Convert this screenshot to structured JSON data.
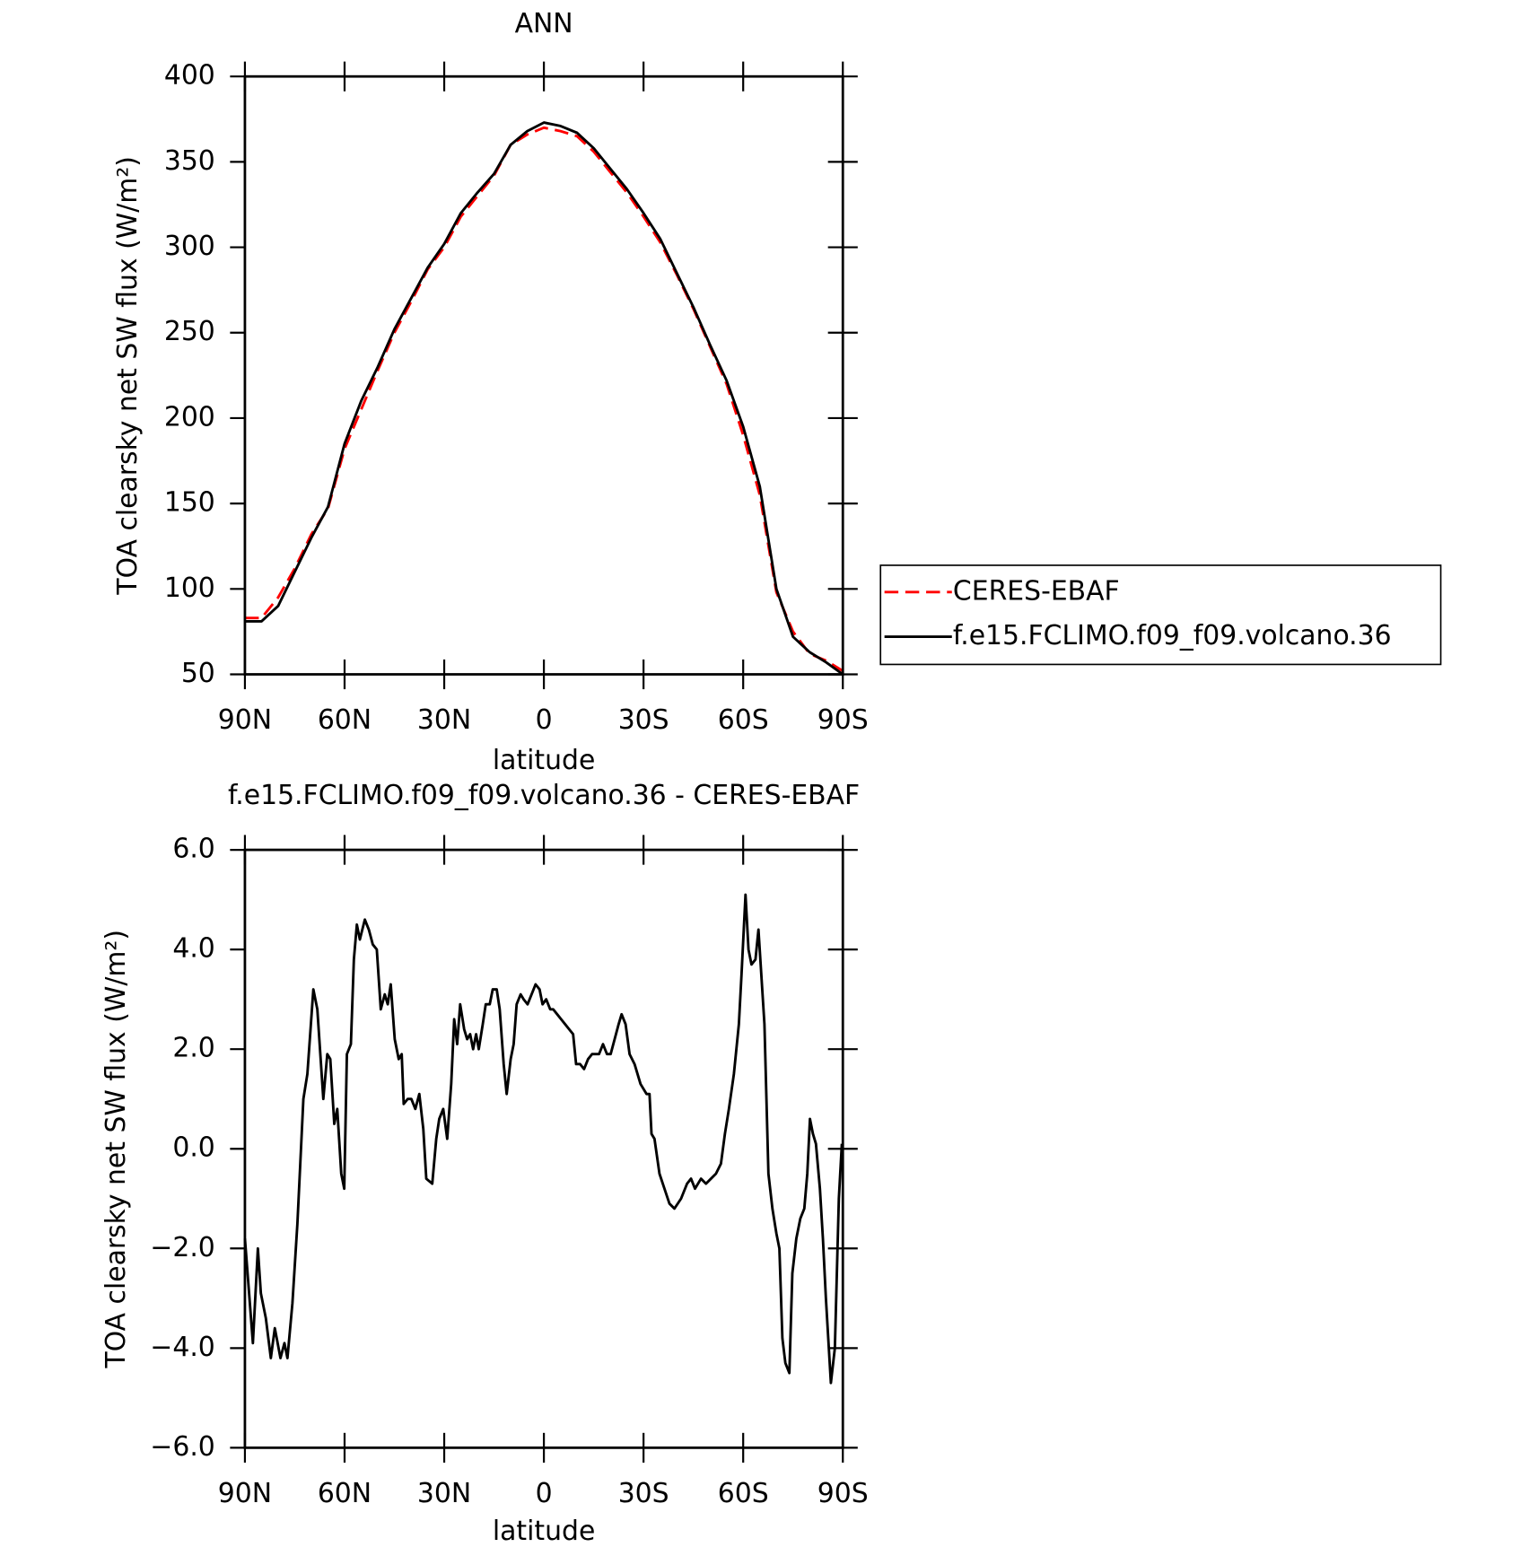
{
  "chart_data": [
    {
      "type": "line",
      "title": "ANN",
      "xlabel": "latitude",
      "ylabel": "TOA clearsky net SW flux (W/m²)",
      "x": [
        90,
        85,
        80,
        75,
        70,
        65,
        60,
        55,
        50,
        45,
        40,
        35,
        30,
        25,
        20,
        15,
        10,
        5,
        0,
        -5,
        -10,
        -15,
        -20,
        -25,
        -30,
        -35,
        -40,
        -45,
        -50,
        -55,
        -60,
        -65,
        -70,
        -75,
        -80,
        -85,
        -90
      ],
      "series": [
        {
          "name": "CERES-EBAF",
          "color": "#ff0000",
          "dashed": true,
          "values": [
            83,
            83,
            95,
            112,
            132,
            147,
            182,
            205,
            228,
            250,
            268,
            287,
            300,
            318,
            330,
            342,
            360,
            366,
            370,
            368,
            365,
            356,
            344,
            332,
            318,
            303,
            284,
            264,
            242,
            220,
            190,
            155,
            98,
            75,
            62,
            58,
            52
          ]
        },
        {
          "name": "f.e15.FCLIMO.f09_f09.volcano.36",
          "color": "#000000",
          "dashed": false,
          "values": [
            81,
            81,
            90,
            110,
            130,
            148,
            185,
            210,
            230,
            252,
            270,
            288,
            302,
            320,
            332,
            343,
            360,
            368,
            373,
            371,
            367,
            358,
            346,
            334,
            320,
            305,
            285,
            265,
            243,
            222,
            195,
            160,
            100,
            72,
            63,
            57,
            50
          ]
        }
      ],
      "xlim": [
        90,
        -90
      ],
      "xticks": [
        {
          "value": 90,
          "label": "90N"
        },
        {
          "value": 60,
          "label": "60N"
        },
        {
          "value": 30,
          "label": "30N"
        },
        0,
        {
          "value": -30,
          "label": "30S"
        },
        {
          "value": -60,
          "label": "60S"
        },
        {
          "value": -90,
          "label": "90S"
        }
      ],
      "ylim": [
        50,
        400
      ],
      "yticks": [
        50,
        100,
        150,
        200,
        250,
        300,
        350,
        400
      ],
      "grid": false,
      "legend": "right"
    },
    {
      "type": "line",
      "title": "f.e15.FCLIMO.f09_f09.volcano.36 - CERES-EBAF",
      "xlabel": "latitude",
      "ylabel": "TOA clearsky net SW flux (W/m²)",
      "x": [
        90,
        87.6,
        86.1,
        85.2,
        83.7,
        82.2,
        81.0,
        79.3,
        78.1,
        77.2,
        75.7,
        74.2,
        72.4,
        71.2,
        69.4,
        68.2,
        66.4,
        65.2,
        64.3,
        63.1,
        62.2,
        61.0,
        60.1,
        59.3,
        58.1,
        57.2,
        56.3,
        55.4,
        53.9,
        52.7,
        51.5,
        50.3,
        49.1,
        47.9,
        47.0,
        46.1,
        44.9,
        43.7,
        42.8,
        42.2,
        41.0,
        39.9,
        38.7,
        37.5,
        36.3,
        35.4,
        33.6,
        32.4,
        31.5,
        30.3,
        29.1,
        27.9,
        27.0,
        26.1,
        25.2,
        24.0,
        23.1,
        22.2,
        21.3,
        20.4,
        19.6,
        18.4,
        17.5,
        16.3,
        15.4,
        14.2,
        13.3,
        12.1,
        11.2,
        10.0,
        9.1,
        8.2,
        7.0,
        6.1,
        4.9,
        3.7,
        2.5,
        1.3,
        0.4,
        -0.7,
        -1.9,
        -2.8,
        -4.0,
        -5.2,
        -6.4,
        -7.6,
        -8.8,
        -9.7,
        -10.9,
        -12.1,
        -13.3,
        -14.5,
        -16.6,
        -17.8,
        -19.0,
        -20.1,
        -21.3,
        -22.5,
        -23.4,
        -24.6,
        -25.8,
        -27.3,
        -29.1,
        -30.9,
        -31.8,
        -32.4,
        -33.3,
        -34.8,
        -36.3,
        -37.8,
        -39.3,
        -41.3,
        -43.1,
        -44.3,
        -45.5,
        -47.3,
        -48.8,
        -50.3,
        -51.8,
        -53.3,
        -54.5,
        -55.7,
        -57.2,
        -58.7,
        -59.5,
        -60.7,
        -61.6,
        -62.5,
        -63.7,
        -64.6,
        -66.4,
        -67.6,
        -68.8,
        -70.0,
        -70.9,
        -71.8,
        -72.7,
        -73.9,
        -74.8,
        -76.0,
        -77.2,
        -78.4,
        -79.3,
        -80.1,
        -81.0,
        -81.9,
        -83.1,
        -84.0,
        -84.9,
        -86.4,
        -87.6,
        -88.8,
        -89.7
      ],
      "color": "#000000",
      "values": [
        -1.8,
        -3.9,
        -2.0,
        -2.9,
        -3.4,
        -4.2,
        -3.6,
        -4.2,
        -3.9,
        -4.2,
        -3.1,
        -1.5,
        1.0,
        1.5,
        3.2,
        2.8,
        1.0,
        1.9,
        1.8,
        0.5,
        0.8,
        -0.5,
        -0.8,
        1.9,
        2.1,
        3.8,
        4.5,
        4.2,
        4.6,
        4.4,
        4.1,
        4.0,
        2.8,
        3.1,
        2.9,
        3.3,
        2.2,
        1.8,
        1.9,
        0.9,
        1.0,
        1.0,
        0.8,
        1.1,
        0.4,
        -0.6,
        -0.7,
        0.2,
        0.6,
        0.8,
        0.2,
        1.3,
        2.6,
        2.1,
        2.9,
        2.4,
        2.2,
        2.3,
        2.0,
        2.3,
        2.0,
        2.5,
        2.9,
        2.9,
        3.2,
        3.2,
        2.8,
        1.7,
        1.1,
        1.8,
        2.1,
        2.9,
        3.1,
        3.0,
        2.9,
        3.1,
        3.3,
        3.2,
        2.9,
        3.0,
        2.8,
        2.8,
        2.7,
        2.6,
        2.5,
        2.4,
        2.3,
        1.7,
        1.7,
        1.6,
        1.8,
        1.9,
        1.9,
        2.1,
        1.9,
        1.9,
        2.2,
        2.5,
        2.7,
        2.5,
        1.9,
        1.7,
        1.3,
        1.1,
        1.1,
        0.3,
        0.2,
        -0.5,
        -0.8,
        -1.1,
        -1.2,
        -1.0,
        -0.7,
        -0.6,
        -0.8,
        -0.6,
        -0.7,
        -0.6,
        -0.5,
        -0.3,
        0.3,
        0.8,
        1.5,
        2.5,
        3.5,
        5.1,
        4.0,
        3.7,
        3.8,
        4.4,
        2.5,
        -0.5,
        -1.2,
        -1.7,
        -2.0,
        -3.8,
        -4.3,
        -4.5,
        -2.5,
        -1.8,
        -1.4,
        -1.2,
        -0.5,
        0.6,
        0.3,
        0.1,
        -0.8,
        -1.8,
        -3.0,
        -4.7,
        -4.0,
        -1.0,
        0.1
      ],
      "xlim": [
        90,
        -90
      ],
      "xticks": [
        {
          "value": 90,
          "label": "90N"
        },
        {
          "value": 60,
          "label": "60N"
        },
        {
          "value": 30,
          "label": "30N"
        },
        0,
        {
          "value": -30,
          "label": "30S"
        },
        {
          "value": -60,
          "label": "60S"
        },
        {
          "value": -90,
          "label": "90S"
        }
      ],
      "ylim": [
        -6,
        6
      ],
      "yticks": [
        {
          "value": -6,
          "label": "−6.0"
        },
        {
          "value": -4,
          "label": "−4.0"
        },
        {
          "value": -2,
          "label": "−2.0"
        },
        {
          "value": 0,
          "label": "0.0"
        },
        {
          "value": 2,
          "label": "2.0"
        },
        {
          "value": 4,
          "label": "4.0"
        },
        {
          "value": 6,
          "label": "6.0"
        }
      ],
      "grid": false
    }
  ]
}
